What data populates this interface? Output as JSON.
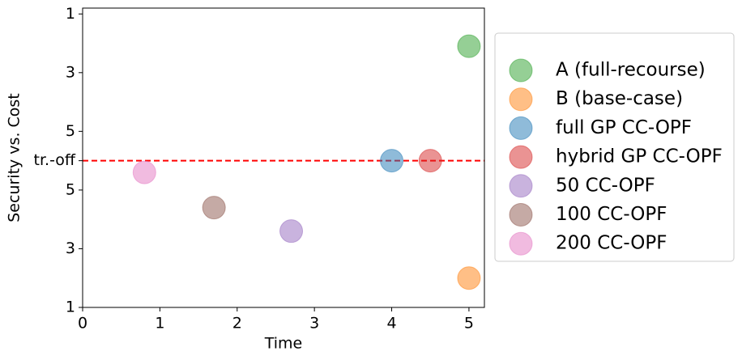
{
  "chart_data": {
    "type": "scatter",
    "xlabel": "Time",
    "ylabel": "Security vs. Cost",
    "xlim": [
      0,
      5.2
    ],
    "xticks": [
      0,
      1,
      2,
      3,
      4,
      5
    ],
    "ylim": [
      1,
      11.2
    ],
    "yticks": [
      1,
      3,
      5,
      {
        "value": 6,
        "label": "tr.-off"
      },
      {
        "value": 7,
        "label": "5"
      },
      {
        "value": 9,
        "label": "3"
      },
      {
        "value": 11,
        "label": "1"
      }
    ],
    "hline": {
      "value": 6,
      "color": "#ff0000"
    },
    "alpha": 0.5,
    "legend": "right",
    "series": [
      {
        "name": "A (full-recourse)",
        "color": "#2ca02c",
        "x": [
          5
        ],
        "values": [
          9.9
        ]
      },
      {
        "name": "B (base-case)",
        "color": "#ff7f0e",
        "x": [
          5
        ],
        "values": [
          2
        ]
      },
      {
        "name": "full GP CC-OPF",
        "color": "#1f77b4",
        "x": [
          4
        ],
        "values": [
          6
        ]
      },
      {
        "name": "hybrid GP CC-OPF",
        "color": "#d62728",
        "x": [
          4.5
        ],
        "values": [
          6
        ]
      },
      {
        "name": "50 CC-OPF",
        "color": "#9467bd",
        "x": [
          2.7
        ],
        "values": [
          3.6
        ]
      },
      {
        "name": "100 CC-OPF",
        "color": "#8c564b",
        "x": [
          1.7
        ],
        "values": [
          4.4
        ]
      },
      {
        "name": "200 CC-OPF",
        "color": "#e377c2",
        "x": [
          0.8
        ],
        "values": [
          5.6
        ]
      }
    ]
  }
}
